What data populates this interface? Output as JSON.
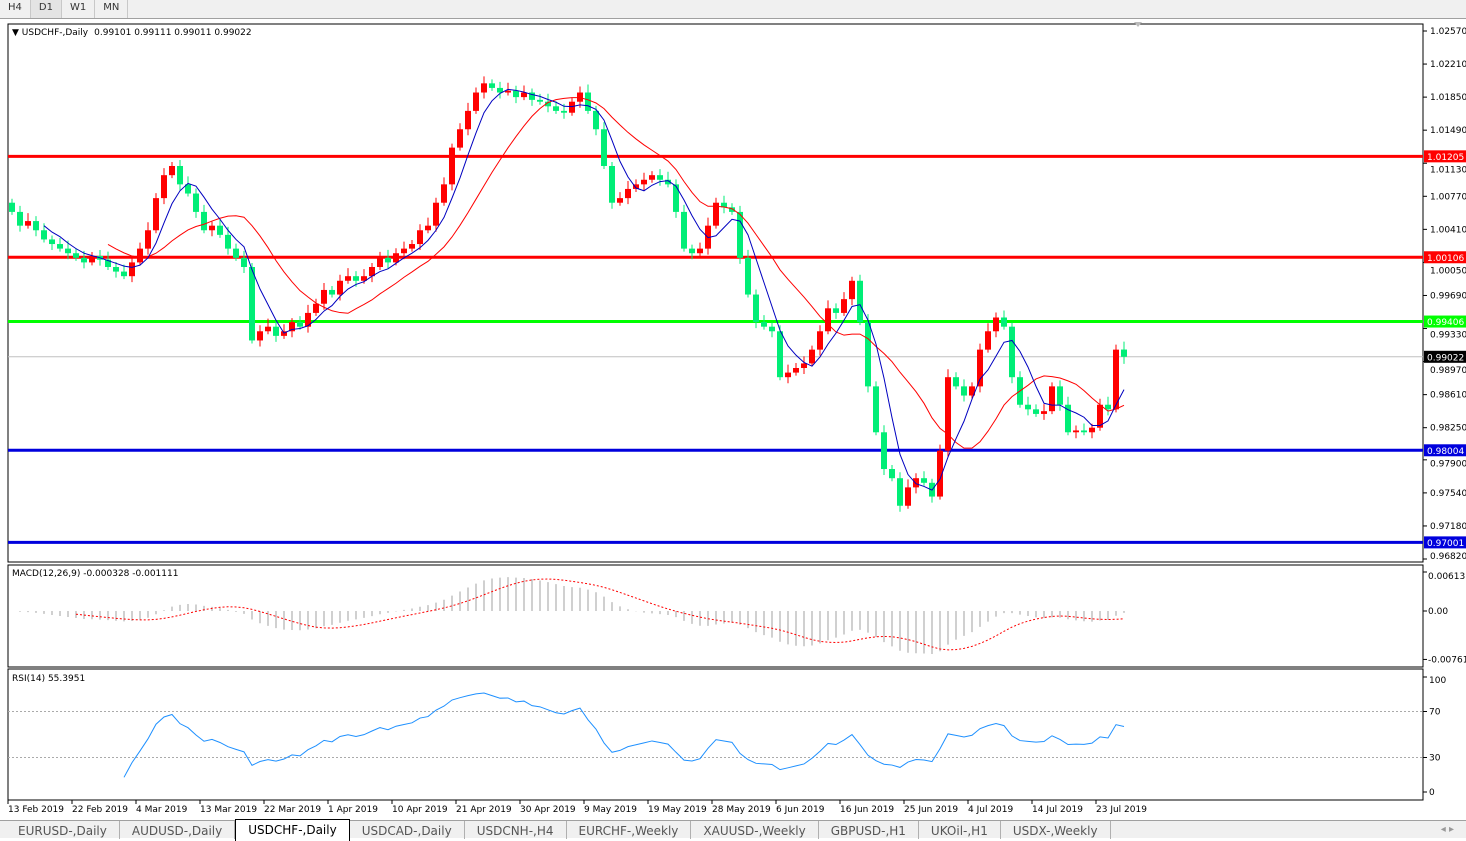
{
  "toolbar": {
    "timeframes": [
      "H4",
      "D1",
      "W1",
      "MN"
    ],
    "active": "D1"
  },
  "chart_header": {
    "symbol": "USDCHF-,Daily",
    "ohlc": "0.99101 0.99111 0.99011 0.99022"
  },
  "macd_label": "MACD(12,26,9) -0.000328 -0.001111",
  "rsi_label": "RSI(14) 55.3951",
  "tabs": [
    "EURUSD-,Daily",
    "AUDUSD-,Daily",
    "USDCHF-,Daily",
    "USDCAD-,Daily",
    "USDCNH-,H4",
    "EURCHF-,Weekly",
    "XAUUSD-,Weekly",
    "GBPUSD-,H1",
    "UKOil-,H1",
    "USDX-,Weekly"
  ],
  "active_tab": "USDCHF-,Daily",
  "colors": {
    "bull": "#ff0000",
    "bear": "#00ee77",
    "ma_fast": "#0000c0",
    "ma_slow": "#ff0000",
    "macd_hist": "#a0a0a0",
    "macd_signal": "#ff0000",
    "rsi": "#1e90ff"
  },
  "chart_data": {
    "type": "candlestick",
    "price_axis": {
      "ticks": [
        "1.02570",
        "1.02210",
        "1.01850",
        "1.01490",
        "1.01130",
        "1.00770",
        "1.00410",
        "1.00050",
        "0.99690",
        "0.99330",
        "0.98970",
        "0.98610",
        "0.98250",
        "0.97900",
        "0.97540",
        "0.97180",
        "0.96820"
      ],
      "ylim": [
        0.9682,
        1.0257
      ]
    },
    "date_ticks": [
      "13 Feb 2019",
      "22 Feb 2019",
      "4 Mar 2019",
      "13 Mar 2019",
      "22 Mar 2019",
      "1 Apr 2019",
      "10 Apr 2019",
      "21 Apr 2019",
      "30 Apr 2019",
      "9 May 2019",
      "19 May 2019",
      "28 May 2019",
      "6 Jun 2019",
      "16 Jun 2019",
      "25 Jun 2019",
      "4 Jul 2019",
      "14 Jul 2019",
      "23 Jul 2019"
    ],
    "first_open": 1.007,
    "closes": [
      1.006,
      1.0045,
      1.005,
      1.004,
      1.003,
      1.0025,
      1.002,
      1.0015,
      1.001,
      1.0005,
      1.0012,
      1.0008,
      1.0,
      0.9995,
      0.999,
      1.0005,
      1.002,
      1.004,
      1.0075,
      1.01,
      1.011,
      1.009,
      1.008,
      1.006,
      1.004,
      1.0045,
      1.0035,
      1.002,
      1.001,
      1.0,
      0.992,
      0.993,
      0.9935,
      0.9925,
      0.993,
      0.994,
      0.9935,
      0.995,
      0.996,
      0.9975,
      0.997,
      0.9985,
      0.999,
      0.9985,
      0.999,
      1.0,
      1.001,
      1.0005,
      1.0015,
      1.002,
      1.0025,
      1.004,
      1.0045,
      1.007,
      1.009,
      1.013,
      1.015,
      1.017,
      1.019,
      1.02,
      1.0195,
      1.019,
      1.0192,
      1.0185,
      1.019,
      1.0182,
      1.018,
      1.0175,
      1.017,
      1.0168,
      1.018,
      1.019,
      1.017,
      1.015,
      1.011,
      1.007,
      1.0075,
      1.0085,
      1.009,
      1.0095,
      1.01,
      1.0095,
      1.009,
      1.006,
      1.002,
      1.0015,
      1.002,
      1.0045,
      1.007,
      1.0065,
      1.006,
      1.001,
      0.997,
      0.994,
      0.9935,
      0.993,
      0.988,
      0.9885,
      0.989,
      0.9895,
      0.991,
      0.993,
      0.9955,
      0.995,
      0.9965,
      0.9985,
      0.994,
      0.987,
      0.982,
      0.978,
      0.977,
      0.974,
      0.976,
      0.977,
      0.9765,
      0.975,
      0.98,
      0.988,
      0.987,
      0.986,
      0.987,
      0.991,
      0.993,
      0.9945,
      0.9935,
      0.988,
      0.985,
      0.9845,
      0.984,
      0.9843,
      0.987,
      0.985,
      0.982,
      0.9822,
      0.982,
      0.9825,
      0.985,
      0.9845,
      0.991,
      0.99022
    ],
    "last_bar": {
      "open": 0.99101,
      "high": 0.99111,
      "low": 0.99011,
      "close": 0.99022
    },
    "hlines": [
      {
        "price": "1.01205",
        "color": "#ff0000"
      },
      {
        "price": "1.00106",
        "color": "#ff0000"
      },
      {
        "price": "0.99406",
        "color": "#00ff00"
      },
      {
        "price": "0.98004",
        "color": "#0000dd"
      },
      {
        "price": "0.97001",
        "color": "#0000dd"
      }
    ],
    "current_price": "0.99022",
    "macd": {
      "ticks": [
        "0.00613",
        "0.00",
        "-0.007612"
      ],
      "ylim": [
        -0.007612,
        0.00613
      ]
    },
    "rsi": {
      "ticks": [
        "100",
        "70",
        "30",
        "0"
      ],
      "levels": [
        70,
        30
      ]
    }
  }
}
